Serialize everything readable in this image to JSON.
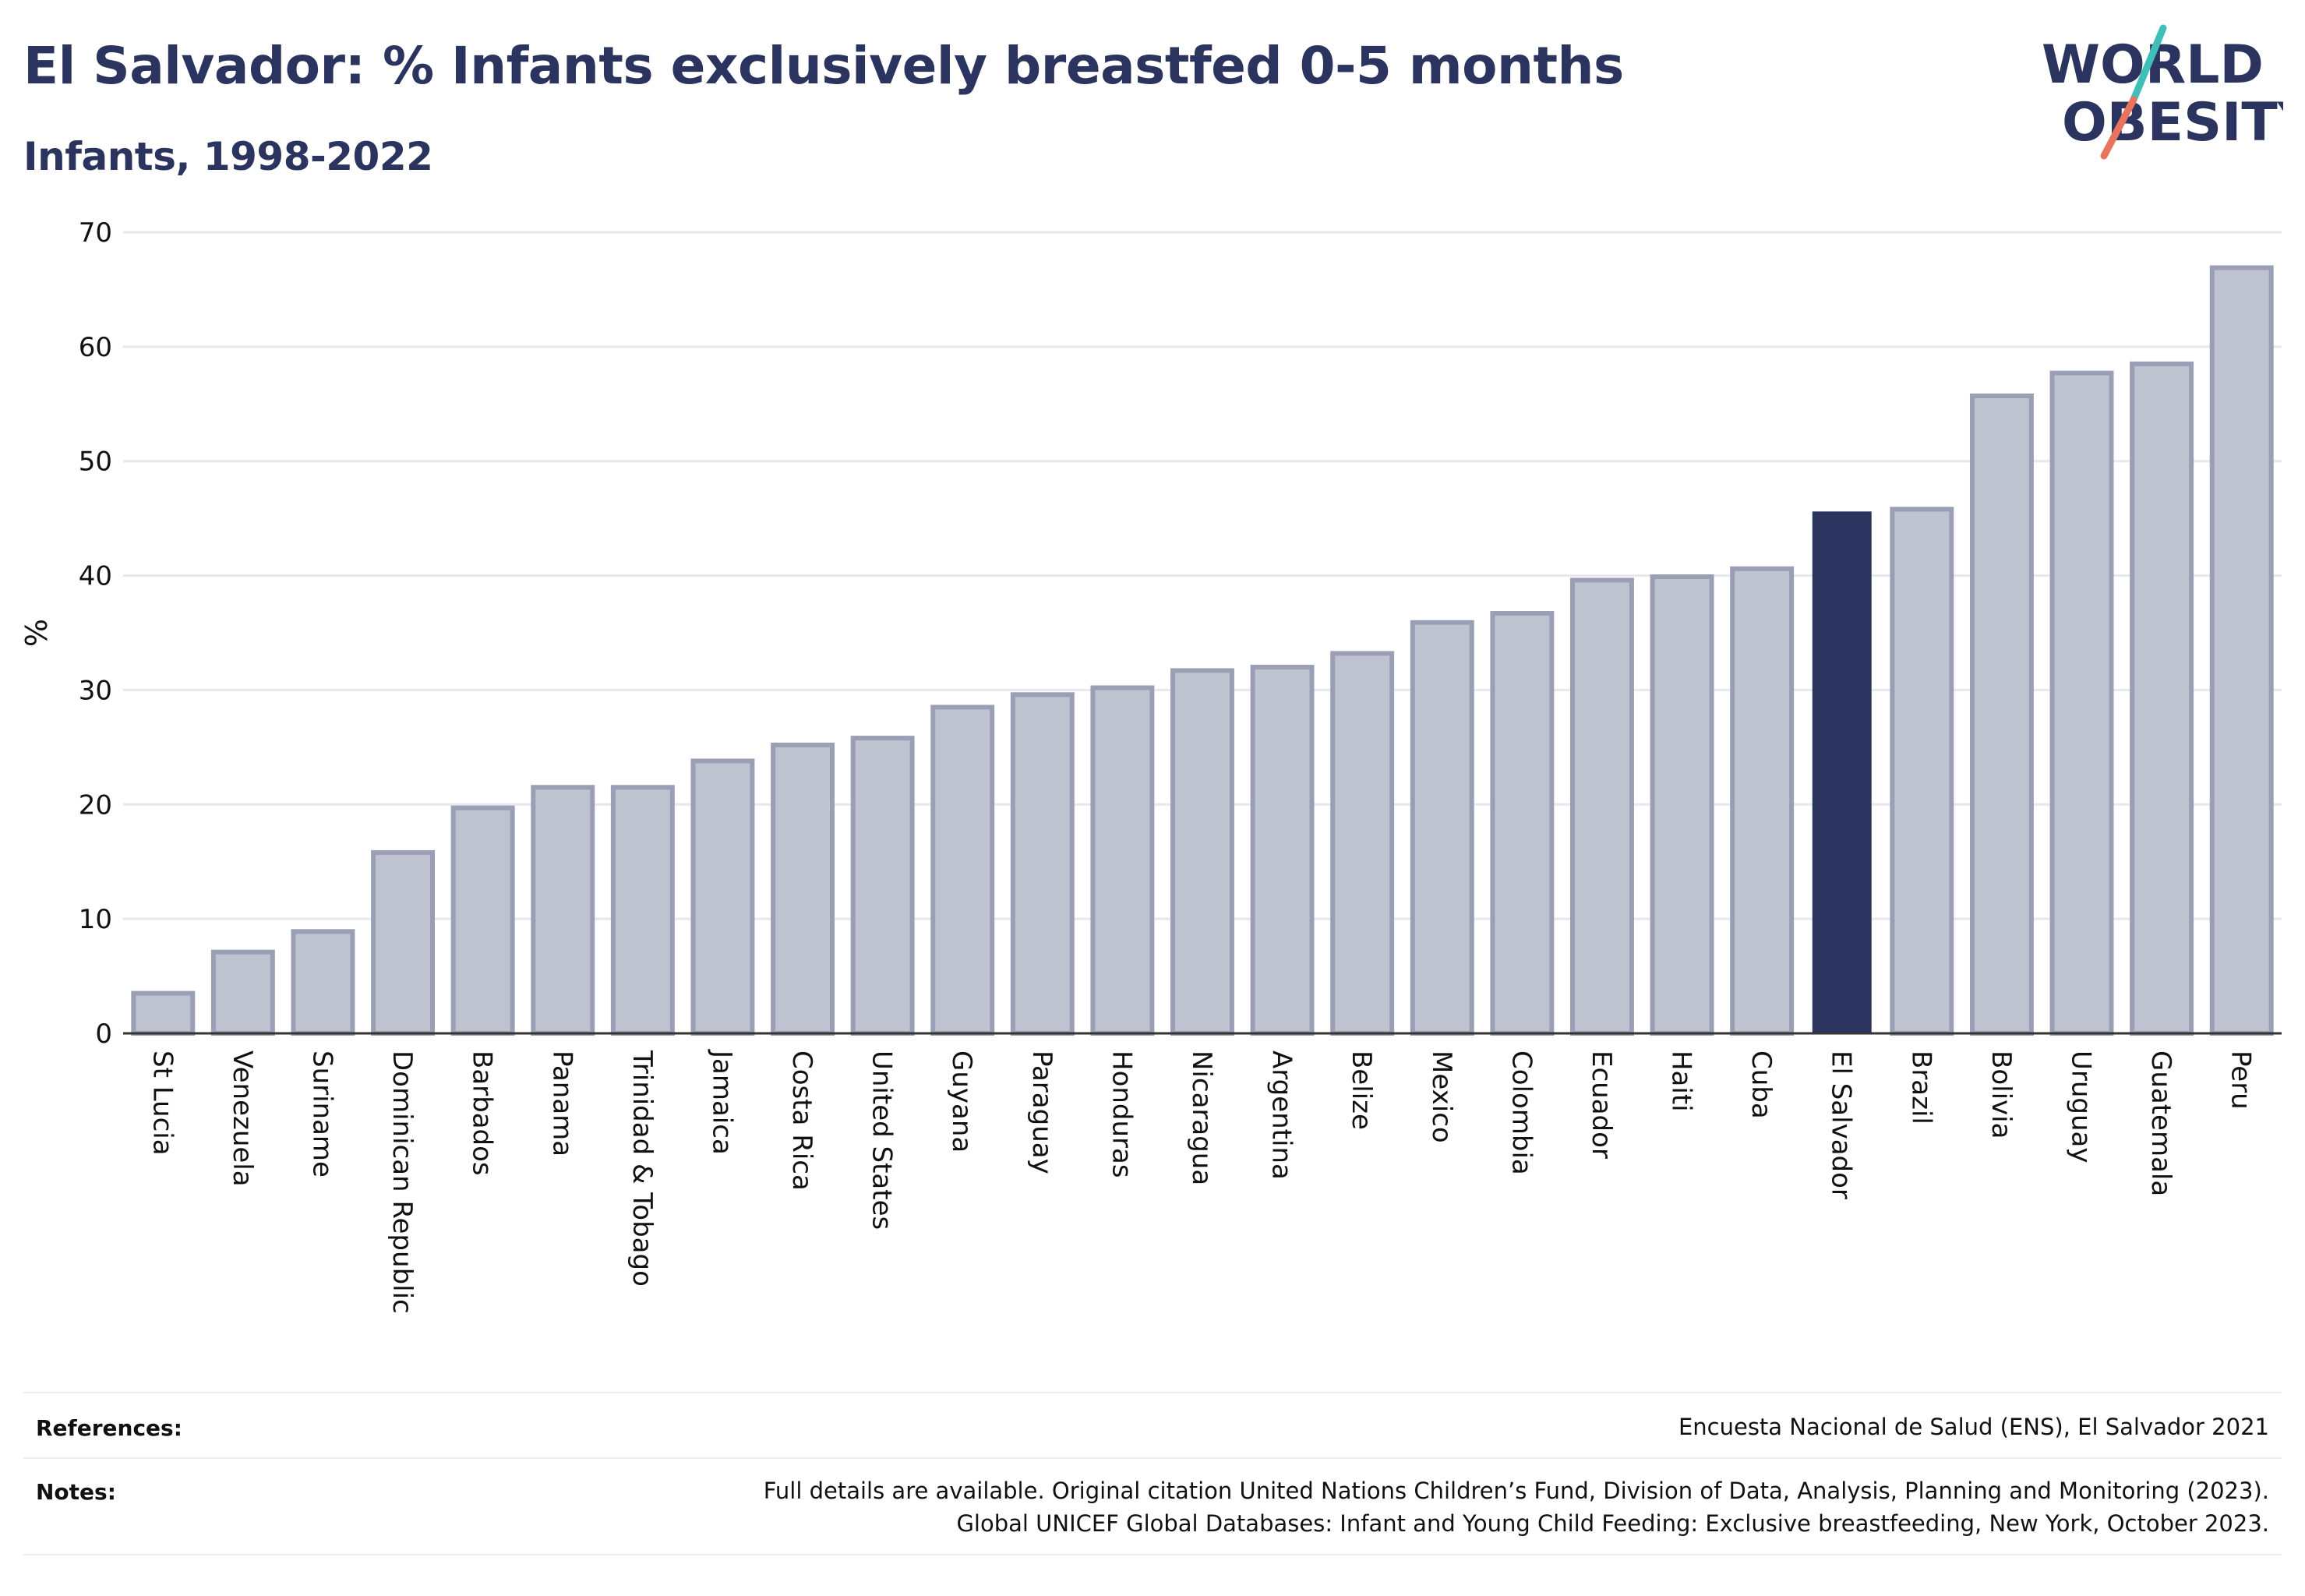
{
  "header": {
    "title": "El Salvador: % Infants exclusively breastfed 0-5 months",
    "subtitle": "Infants, 1998-2022"
  },
  "logo": {
    "line1": "WORLD",
    "line2": "OBESITY",
    "colors": {
      "text": "#2b345e",
      "slash_top": "#3fbfb8",
      "slash_bottom": "#e8735f"
    }
  },
  "chart_data": {
    "type": "bar",
    "ylabel": "%",
    "xlabel": "",
    "ylim": [
      0,
      70
    ],
    "yticks": [
      0,
      10,
      20,
      30,
      40,
      50,
      60,
      70
    ],
    "grid": true,
    "highlight": "El Salvador",
    "colors": {
      "bar_fill": "#bfc2cf",
      "bar_stroke": "#9a9fb6",
      "highlight_fill": "#2b345e",
      "grid": "#e6e8ee",
      "axis": "#333333"
    },
    "categories": [
      "St Lucia",
      "Venezuela",
      "Suriname",
      "Dominican Republic",
      "Barbados",
      "Panama",
      "Trinidad & Tobago",
      "Jamaica",
      "Costa Rica",
      "United States",
      "Guyana",
      "Paraguay",
      "Honduras",
      "Nicaragua",
      "Argentina",
      "Belize",
      "Mexico",
      "Colombia",
      "Ecuador",
      "Haiti",
      "Cuba",
      "El Salvador",
      "Brazil",
      "Bolivia",
      "Uruguay",
      "Guatemala",
      "Peru"
    ],
    "values": [
      3.5,
      7.1,
      8.9,
      15.8,
      19.7,
      21.5,
      21.5,
      23.8,
      25.2,
      25.8,
      28.5,
      29.6,
      30.2,
      31.7,
      32.0,
      33.2,
      35.9,
      36.7,
      39.6,
      39.9,
      40.6,
      45.6,
      45.8,
      55.7,
      57.7,
      58.5,
      66.9
    ]
  },
  "footer": {
    "references_label": "References:",
    "references_text": "Encuesta Nacional de Salud (ENS), El Salvador 2021",
    "notes_label": "Notes:",
    "notes_line1": "Full details are available. Original citation United Nations Children’s Fund, Division of Data, Analysis, Planning and Monitoring (2023).",
    "notes_line2": "Global UNICEF Global Databases: Infant and Young Child Feeding: Exclusive breastfeeding, New York, October 2023."
  }
}
